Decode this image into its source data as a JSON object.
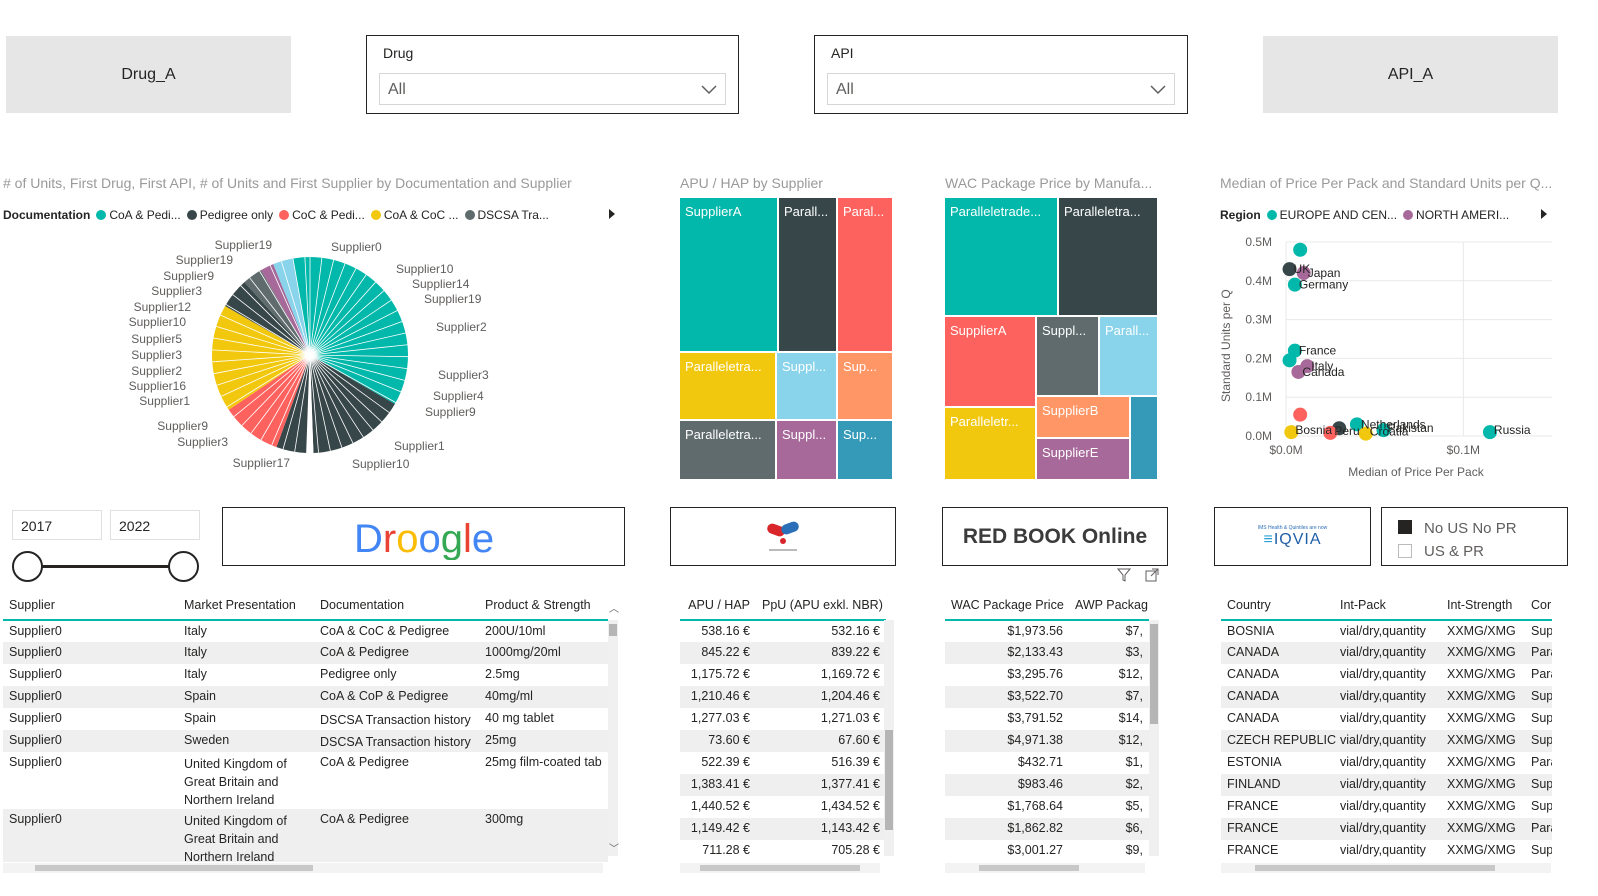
{
  "buttons": {
    "left": "Drug_A",
    "right": "API_A"
  },
  "slicers": {
    "drug": {
      "label": "Drug",
      "value": "All"
    },
    "api": {
      "label": "API",
      "value": "All"
    }
  },
  "years": {
    "start": "2017",
    "end": "2022"
  },
  "pie": {
    "title": "# of Units, First Drug, First API, # of Units and First Supplier by Documentation and Supplier",
    "legend_title": "Documentation",
    "legend": [
      {
        "name": "CoA & Pedi...",
        "color": "#01b8aa"
      },
      {
        "name": "Pedigree only",
        "color": "#374649"
      },
      {
        "name": "CoC & Pedi...",
        "color": "#fd625e"
      },
      {
        "name": "CoA & CoC ...",
        "color": "#f2c80f"
      },
      {
        "name": "DSCSA Tra...",
        "color": "#5f6b6d"
      }
    ],
    "labels_left": [
      "Supplier19",
      "Supplier19",
      "Supplier9",
      "Supplier3",
      "Supplier12",
      "Supplier10",
      "Supplier5",
      "Supplier3",
      "Supplier2",
      "Supplier16",
      "Supplier1",
      "Supplier9",
      "Supplier3",
      "Supplier17"
    ],
    "labels_right": [
      "Supplier0",
      "Supplier10",
      "Supplier14",
      "Supplier19",
      "Supplier2",
      "Supplier3",
      "Supplier4",
      "Supplier9",
      "Supplier1",
      "Supplier10"
    ]
  },
  "treemap1": {
    "title": "APU / HAP by Supplier",
    "cells": [
      "SupplierA",
      "Parall...",
      "Paral...",
      "Paralleletra...",
      "Suppl...",
      "Sup...",
      "Paralleletra...",
      "Suppl...",
      "Sup..."
    ]
  },
  "treemap2": {
    "title": "WAC Package Price by Manufa...",
    "cells": [
      "Paralleletrade...",
      "Paralleletra...",
      "SupplierA",
      "Suppl...",
      "Parall...",
      "Paralleletr...",
      "SupplierB",
      "SupplierE"
    ]
  },
  "scatter": {
    "title": "Median of Price Per Pack and Standard Units per Q...",
    "legend_title": "Region",
    "legend": [
      {
        "name": "EUROPE AND CEN...",
        "color": "#01b8aa"
      },
      {
        "name": "NORTH AMERI...",
        "color": "#a66999"
      }
    ],
    "ylabel": "Standard Units per Q",
    "xlabel": "Median of Price Per Pack",
    "yticks": [
      "0.5M",
      "0.4M",
      "0.3M",
      "0.2M",
      "0.1M",
      "0.0M"
    ],
    "xticks": [
      "$0.0M",
      "$0.1M"
    ],
    "point_labels": [
      "UK",
      "Japan",
      "Germany",
      "France",
      "Italy",
      "Canada",
      "Netherlands",
      "Pakistan",
      "Russia",
      "Bosnia",
      "Peru",
      "Croatia"
    ]
  },
  "scatter_chart_data": {
    "type": "scatter",
    "ylim": [
      0,
      500000
    ],
    "xlim": [
      0,
      150000
    ],
    "points": [
      {
        "label": "UK",
        "x": 2000,
        "y": 430000,
        "color": "#374649"
      },
      {
        "label": "",
        "x": 8000,
        "y": 480000,
        "color": "#01b8aa"
      },
      {
        "label": "Japan",
        "x": 10000,
        "y": 420000,
        "color": "#a66999"
      },
      {
        "label": "Germany",
        "x": 5000,
        "y": 390000,
        "color": "#01b8aa"
      },
      {
        "label": "France",
        "x": 5000,
        "y": 220000,
        "color": "#01b8aa"
      },
      {
        "label": "",
        "x": 2000,
        "y": 195000,
        "color": "#01b8aa"
      },
      {
        "label": "Italy",
        "x": 12000,
        "y": 180000,
        "color": "#a66999"
      },
      {
        "label": "Canada",
        "x": 7000,
        "y": 165000,
        "color": "#a66999"
      },
      {
        "label": "",
        "x": 8000,
        "y": 55000,
        "color": "#fd625e"
      },
      {
        "label": "Netherlands",
        "x": 40000,
        "y": 30000,
        "color": "#01b8aa"
      },
      {
        "label": "",
        "x": 30000,
        "y": 20000,
        "color": "#374649"
      },
      {
        "label": "Pakistan",
        "x": 55000,
        "y": 15000,
        "color": "#01b8aa"
      },
      {
        "label": "Russia",
        "x": 115000,
        "y": 10000,
        "color": "#01b8aa"
      },
      {
        "label": "Bosnia",
        "x": 3000,
        "y": 10000,
        "color": "#f2c80f"
      },
      {
        "label": "Peru",
        "x": 25000,
        "y": 8000,
        "color": "#fd625e"
      },
      {
        "label": "Croatia",
        "x": 45000,
        "y": 6000,
        "color": "#f2c80f"
      }
    ]
  },
  "logos": {
    "droogle": "Droogle",
    "redbook": "RED BOOK Online",
    "iqvia_small": "IMS Health & Quintiles are now",
    "iqvia": "IQVIA"
  },
  "pr_legend": {
    "a": "No US No PR",
    "b": "US & PR"
  },
  "table1": {
    "headers": [
      "Supplier",
      "Market Presentation",
      "Documentation",
      "Product & Strength"
    ],
    "rows": [
      [
        "Supplier0",
        "Italy",
        "CoA & CoC & Pedigree",
        "200U/10ml"
      ],
      [
        "Supplier0",
        "Italy",
        "CoA & Pedigree",
        "1000mg/20ml"
      ],
      [
        "Supplier0",
        "Italy",
        "Pedigree only",
        "2.5mg"
      ],
      [
        "Supplier0",
        "Spain",
        "CoA & CoP & Pedigree",
        "40mg/ml"
      ],
      [
        "Supplier0",
        "Spain",
        "DSCSA Transaction history",
        "40 mg tablet"
      ],
      [
        "Supplier0",
        "Sweden",
        "DSCSA Transaction history",
        "25mg"
      ],
      [
        "Supplier0",
        "United Kingdom of Great Britain and Northern Ireland",
        "CoA & Pedigree",
        "25mg film-coated tab"
      ],
      [
        "Supplier0",
        "United Kingdom of Great Britain and Northern Ireland",
        "CoA & Pedigree",
        "300mg"
      ]
    ]
  },
  "table2": {
    "headers": [
      "APU / HAP",
      "PpU (APU exkl. NBR)"
    ],
    "rows": [
      [
        "538.16 €",
        "532.16 €"
      ],
      [
        "845.22 €",
        "839.22 €"
      ],
      [
        "1,175.72 €",
        "1,169.72 €"
      ],
      [
        "1,210.46 €",
        "1,204.46 €"
      ],
      [
        "1,277.03 €",
        "1,271.03 €"
      ],
      [
        "73.60 €",
        "67.60 €"
      ],
      [
        "522.39 €",
        "516.39 €"
      ],
      [
        "1,383.41 €",
        "1,377.41 €"
      ],
      [
        "1,440.52 €",
        "1,434.52 €"
      ],
      [
        "1,149.42 €",
        "1,143.42 €"
      ],
      [
        "711.28 €",
        "705.28 €"
      ]
    ]
  },
  "table3": {
    "headers": [
      "WAC Package Price",
      "AWP Packag"
    ],
    "rows": [
      [
        "$1,973.56",
        "$7,"
      ],
      [
        "$2,133.43",
        "$3,"
      ],
      [
        "$3,295.76",
        "$12,"
      ],
      [
        "$3,522.70",
        "$7,"
      ],
      [
        "$3,791.52",
        "$14,"
      ],
      [
        "$4,971.38",
        "$12,"
      ],
      [
        "$432.71",
        "$1,"
      ],
      [
        "$983.46",
        "$2,"
      ],
      [
        "$1,768.64",
        "$5,"
      ],
      [
        "$1,862.82",
        "$6,"
      ],
      [
        "$3,001.27",
        "$9,"
      ]
    ]
  },
  "table4": {
    "headers": [
      "Country",
      "Int-Pack",
      "Int-Strength",
      "Cor"
    ],
    "rows": [
      [
        "BOSNIA",
        "vial/dry,quantity",
        "XXMG/XMG",
        "Sup"
      ],
      [
        "CANADA",
        "vial/dry,quantity",
        "XXMG/XMG",
        "Para"
      ],
      [
        "CANADA",
        "vial/dry,quantity",
        "XXMG/XMG",
        "Para"
      ],
      [
        "CANADA",
        "vial/dry,quantity",
        "XXMG/XMG",
        "Sup"
      ],
      [
        "CANADA",
        "vial/dry,quantity",
        "XXMG/XMG",
        "Sup"
      ],
      [
        "CZECH REPUBLIC",
        "vial/dry,quantity",
        "XXMG/XMG",
        "Sup"
      ],
      [
        "ESTONIA",
        "vial/dry,quantity",
        "XXMG/XMG",
        "Para"
      ],
      [
        "FINLAND",
        "vial/dry,quantity",
        "XXMG/XMG",
        "Sup"
      ],
      [
        "FRANCE",
        "vial/dry,quantity",
        "XXMG/XMG",
        "Sup"
      ],
      [
        "FRANCE",
        "vial/dry,quantity",
        "XXMG/XMG",
        "Para"
      ],
      [
        "FRANCE",
        "vial/dry,quantity",
        "XXMG/XMG",
        "Sup"
      ]
    ]
  }
}
